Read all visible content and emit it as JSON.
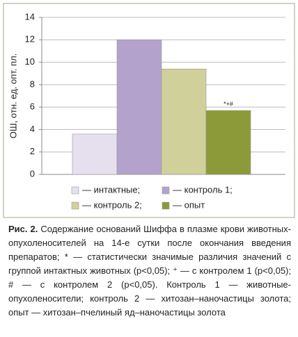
{
  "chart_data": {
    "type": "bar",
    "y_label": "ОШ, отн. ед. опт. пл.",
    "ylim": [
      0,
      14
    ],
    "yticks": [
      0,
      2,
      4,
      6,
      8,
      10,
      12,
      14
    ],
    "grid": true,
    "series": [
      {
        "name": "— интактные;",
        "color": "#e6e0ee",
        "values": [
          3.6
        ]
      },
      {
        "name": "— контроль 1;",
        "color": "#b3a2cc",
        "values": [
          12.0
        ]
      },
      {
        "name": "— контроль 2;",
        "color": "#cfd09a",
        "values": [
          9.4
        ]
      },
      {
        "name": "— опыт",
        "color": "#8c9a3a",
        "values": [
          5.7
        ],
        "annotation": "*+#"
      }
    ]
  },
  "caption": {
    "label": "Рис. 2.",
    "text": "Содержание оснований Шиффа в плазме крови животных-опухоленосителей на 14-е сутки после окончания введения препаратов; * — статистически значимые различия значений с группой интактных животных (p<0,05); ⁺ — с контролем 1 (p<0,05); # — с контролем 2 (p<0,05). Контроль 1 — животные-опухоленосители; контроль 2 — хитозан–наночастицы золота; опыт — хитозан–пчелиный яд–наночастицы золота"
  }
}
